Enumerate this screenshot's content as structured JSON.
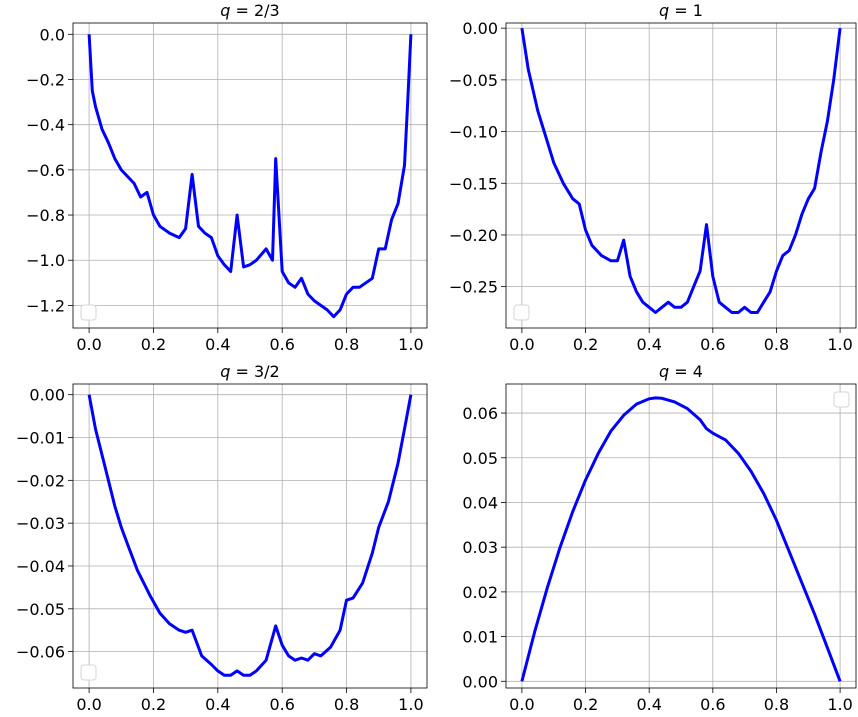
{
  "chart_data": [
    {
      "type": "line",
      "title": "q = 2/3",
      "xlim": [
        -0.05,
        1.05
      ],
      "ylim": [
        -1.3,
        0.05
      ],
      "xticks": [
        0.0,
        0.2,
        0.4,
        0.6,
        0.8,
        1.0
      ],
      "xtick_labels": [
        "0.0",
        "0.2",
        "0.4",
        "0.6",
        "0.8",
        "1.0"
      ],
      "yticks": [
        0.0,
        -0.2,
        -0.4,
        -0.6,
        -0.8,
        -1.0,
        -1.2
      ],
      "ytick_labels": [
        "0.0",
        "−0.2",
        "−0.4",
        "−0.6",
        "−0.8",
        "−1.0",
        "−1.2"
      ],
      "grid": true,
      "legend": "lower-left (empty)",
      "series": [
        {
          "color": "#0000ff",
          "x": [
            0.0,
            0.01,
            0.02,
            0.04,
            0.06,
            0.08,
            0.1,
            0.12,
            0.14,
            0.16,
            0.18,
            0.2,
            0.22,
            0.25,
            0.28,
            0.3,
            0.32,
            0.34,
            0.36,
            0.38,
            0.4,
            0.42,
            0.44,
            0.46,
            0.48,
            0.5,
            0.52,
            0.55,
            0.57,
            0.58,
            0.6,
            0.62,
            0.64,
            0.66,
            0.68,
            0.7,
            0.72,
            0.74,
            0.76,
            0.78,
            0.8,
            0.82,
            0.84,
            0.86,
            0.88,
            0.9,
            0.92,
            0.94,
            0.96,
            0.98,
            0.99,
            1.0
          ],
          "y": [
            0.0,
            -0.25,
            -0.32,
            -0.42,
            -0.48,
            -0.55,
            -0.6,
            -0.63,
            -0.66,
            -0.72,
            -0.7,
            -0.8,
            -0.85,
            -0.88,
            -0.9,
            -0.86,
            -0.62,
            -0.85,
            -0.88,
            -0.9,
            -0.98,
            -1.02,
            -1.05,
            -0.8,
            -1.03,
            -1.02,
            -1.0,
            -0.95,
            -1.0,
            -0.55,
            -1.05,
            -1.1,
            -1.12,
            -1.08,
            -1.15,
            -1.18,
            -1.2,
            -1.22,
            -1.25,
            -1.22,
            -1.15,
            -1.12,
            -1.12,
            -1.1,
            -1.08,
            -0.95,
            -0.95,
            -0.82,
            -0.75,
            -0.58,
            -0.3,
            0.0
          ]
        }
      ]
    },
    {
      "type": "line",
      "title": "q = 1",
      "xlim": [
        -0.05,
        1.05
      ],
      "ylim": [
        -0.29,
        0.005
      ],
      "xticks": [
        0.0,
        0.2,
        0.4,
        0.6,
        0.8,
        1.0
      ],
      "xtick_labels": [
        "0.0",
        "0.2",
        "0.4",
        "0.6",
        "0.8",
        "1.0"
      ],
      "yticks": [
        0.0,
        -0.05,
        -0.1,
        -0.15,
        -0.2,
        -0.25
      ],
      "ytick_labels": [
        "0.00",
        "−0.05",
        "−0.10",
        "−0.15",
        "−0.20",
        "−0.25"
      ],
      "grid": true,
      "legend": "lower-left (empty)",
      "series": [
        {
          "color": "#0000ff",
          "x": [
            0.0,
            0.02,
            0.05,
            0.08,
            0.1,
            0.13,
            0.16,
            0.18,
            0.2,
            0.22,
            0.25,
            0.28,
            0.3,
            0.32,
            0.34,
            0.36,
            0.38,
            0.4,
            0.42,
            0.44,
            0.46,
            0.48,
            0.5,
            0.52,
            0.54,
            0.56,
            0.58,
            0.6,
            0.62,
            0.64,
            0.66,
            0.68,
            0.7,
            0.72,
            0.74,
            0.76,
            0.78,
            0.8,
            0.82,
            0.84,
            0.86,
            0.88,
            0.9,
            0.92,
            0.94,
            0.96,
            0.98,
            1.0
          ],
          "y": [
            0.0,
            -0.04,
            -0.08,
            -0.11,
            -0.13,
            -0.15,
            -0.165,
            -0.17,
            -0.195,
            -0.21,
            -0.22,
            -0.225,
            -0.225,
            -0.205,
            -0.24,
            -0.255,
            -0.265,
            -0.27,
            -0.275,
            -0.27,
            -0.265,
            -0.27,
            -0.27,
            -0.265,
            -0.25,
            -0.235,
            -0.19,
            -0.24,
            -0.265,
            -0.27,
            -0.275,
            -0.275,
            -0.27,
            -0.275,
            -0.275,
            -0.265,
            -0.255,
            -0.235,
            -0.22,
            -0.215,
            -0.2,
            -0.18,
            -0.165,
            -0.155,
            -0.12,
            -0.09,
            -0.05,
            0.0
          ]
        }
      ]
    },
    {
      "type": "line",
      "title": "q = 3/2",
      "xlim": [
        -0.05,
        1.05
      ],
      "ylim": [
        -0.0685,
        0.0025
      ],
      "xticks": [
        0.0,
        0.2,
        0.4,
        0.6,
        0.8,
        1.0
      ],
      "xtick_labels": [
        "0.0",
        "0.2",
        "0.4",
        "0.6",
        "0.8",
        "1.0"
      ],
      "yticks": [
        0.0,
        -0.01,
        -0.02,
        -0.03,
        -0.04,
        -0.05,
        -0.06
      ],
      "ytick_labels": [
        "0.00",
        "−0.01",
        "−0.02",
        "−0.03",
        "−0.04",
        "−0.05",
        "−0.06"
      ],
      "grid": true,
      "legend": "lower-left (empty)",
      "series": [
        {
          "color": "#0000ff",
          "x": [
            0.0,
            0.02,
            0.05,
            0.08,
            0.1,
            0.12,
            0.15,
            0.17,
            0.19,
            0.22,
            0.25,
            0.28,
            0.3,
            0.32,
            0.35,
            0.38,
            0.4,
            0.42,
            0.44,
            0.46,
            0.48,
            0.5,
            0.52,
            0.55,
            0.58,
            0.6,
            0.62,
            0.64,
            0.66,
            0.68,
            0.7,
            0.72,
            0.75,
            0.78,
            0.8,
            0.82,
            0.85,
            0.88,
            0.9,
            0.93,
            0.96,
            0.98,
            1.0
          ],
          "y": [
            0.0,
            -0.008,
            -0.017,
            -0.026,
            -0.031,
            -0.035,
            -0.041,
            -0.044,
            -0.047,
            -0.051,
            -0.0535,
            -0.055,
            -0.0555,
            -0.055,
            -0.061,
            -0.063,
            -0.0645,
            -0.0655,
            -0.0655,
            -0.0645,
            -0.0655,
            -0.0655,
            -0.0645,
            -0.062,
            -0.054,
            -0.0585,
            -0.061,
            -0.062,
            -0.0615,
            -0.062,
            -0.0605,
            -0.061,
            -0.059,
            -0.055,
            -0.048,
            -0.0475,
            -0.044,
            -0.037,
            -0.031,
            -0.025,
            -0.016,
            -0.008,
            0.0
          ]
        }
      ]
    },
    {
      "type": "line",
      "title": "q = 4",
      "xlim": [
        -0.05,
        1.05
      ],
      "ylim": [
        -0.0015,
        0.0665
      ],
      "xticks": [
        0.0,
        0.2,
        0.4,
        0.6,
        0.8,
        1.0
      ],
      "xtick_labels": [
        "0.0",
        "0.2",
        "0.4",
        "0.6",
        "0.8",
        "1.0"
      ],
      "yticks": [
        0.0,
        0.01,
        0.02,
        0.03,
        0.04,
        0.05,
        0.06
      ],
      "ytick_labels": [
        "0.00",
        "0.01",
        "0.02",
        "0.03",
        "0.04",
        "0.05",
        "0.06"
      ],
      "grid": true,
      "legend": "upper-right (empty)",
      "series": [
        {
          "color": "#0000ff",
          "x": [
            0.0,
            0.04,
            0.08,
            0.12,
            0.16,
            0.2,
            0.24,
            0.28,
            0.32,
            0.36,
            0.4,
            0.42,
            0.44,
            0.48,
            0.52,
            0.56,
            0.58,
            0.6,
            0.64,
            0.68,
            0.72,
            0.76,
            0.8,
            0.84,
            0.88,
            0.92,
            0.96,
            1.0
          ],
          "y": [
            0.0,
            0.011,
            0.021,
            0.03,
            0.038,
            0.045,
            0.051,
            0.056,
            0.0595,
            0.062,
            0.0632,
            0.0634,
            0.0633,
            0.0625,
            0.061,
            0.0585,
            0.0565,
            0.0555,
            0.054,
            0.051,
            0.047,
            0.042,
            0.036,
            0.029,
            0.022,
            0.015,
            0.0075,
            0.0
          ]
        }
      ]
    }
  ]
}
